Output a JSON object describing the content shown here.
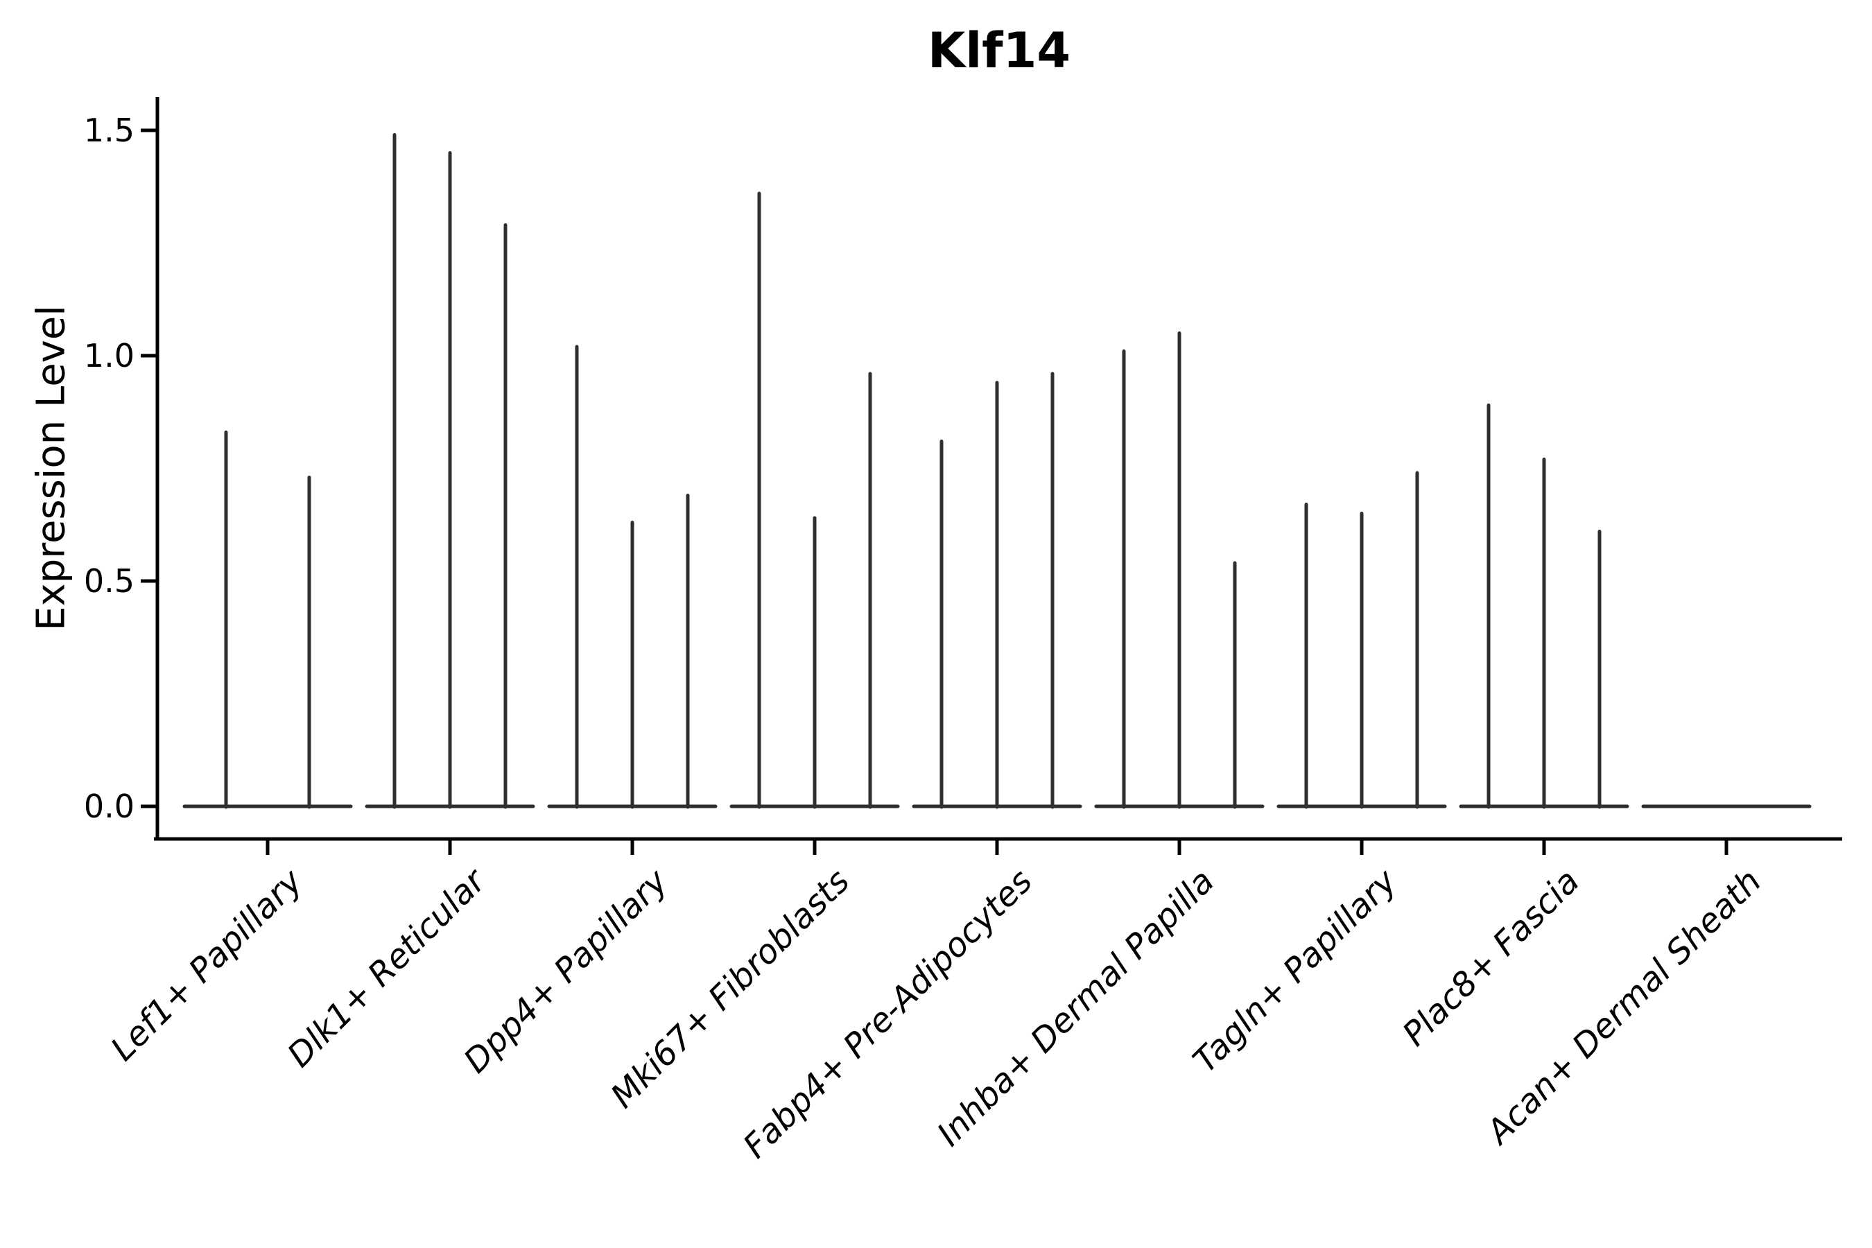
{
  "chart_data": {
    "type": "violin",
    "title": "Klf14",
    "ylabel": "Expression Level",
    "xlabel": "",
    "ylim": [
      0.0,
      1.5
    ],
    "ytick_labels": [
      "0.0",
      "0.5",
      "1.0",
      "1.5"
    ],
    "ytick_values": [
      0.0,
      0.5,
      1.0,
      1.5
    ],
    "grid": false,
    "legend": false,
    "x_tick_rotation_deg": 45,
    "categories": [
      "Lef1+ Papillary",
      "Dlk1+ Reticular",
      "Dpp4+ Papillary",
      "Mki67+ Fibroblasts",
      "Fabp4+ Pre-Adipocytes",
      "Inhba+ Dermal Papilla",
      "Tagln+ Papillary",
      "Plac8+ Fascia",
      "Acan+ Dermal Sheath"
    ],
    "groups": [
      {
        "category": "Lef1+ Papillary",
        "spikes": [
          {
            "offset": -60,
            "value": 0.83
          },
          {
            "offset": 60,
            "value": 0.73
          }
        ]
      },
      {
        "category": "Dlk1+ Reticular",
        "spikes": [
          {
            "offset": -80,
            "value": 1.49
          },
          {
            "offset": 0,
            "value": 1.45
          },
          {
            "offset": 80,
            "value": 1.29
          }
        ]
      },
      {
        "category": "Dpp4+ Papillary",
        "spikes": [
          {
            "offset": -80,
            "value": 1.02
          },
          {
            "offset": 0,
            "value": 0.63
          },
          {
            "offset": 80,
            "value": 0.69
          }
        ]
      },
      {
        "category": "Mki67+ Fibroblasts",
        "spikes": [
          {
            "offset": -80,
            "value": 1.36
          },
          {
            "offset": 0,
            "value": 0.64
          },
          {
            "offset": 80,
            "value": 0.96
          }
        ]
      },
      {
        "category": "Fabp4+ Pre-Adipocytes",
        "spikes": [
          {
            "offset": -80,
            "value": 0.81
          },
          {
            "offset": 0,
            "value": 0.94
          },
          {
            "offset": 80,
            "value": 0.96
          }
        ]
      },
      {
        "category": "Inhba+ Dermal Papilla",
        "spikes": [
          {
            "offset": -80,
            "value": 1.01
          },
          {
            "offset": 0,
            "value": 1.05
          },
          {
            "offset": 80,
            "value": 0.54
          }
        ]
      },
      {
        "category": "Tagln+ Papillary",
        "spikes": [
          {
            "offset": -80,
            "value": 0.67
          },
          {
            "offset": 0,
            "value": 0.65
          },
          {
            "offset": 80,
            "value": 0.74
          }
        ]
      },
      {
        "category": "Plac8+ Fascia",
        "spikes": [
          {
            "offset": -80,
            "value": 0.89
          },
          {
            "offset": 0,
            "value": 0.77
          },
          {
            "offset": 80,
            "value": 0.61
          }
        ]
      },
      {
        "category": "Acan+ Dermal Sheath",
        "spikes": []
      }
    ],
    "baseline_value": 0.0,
    "colors": {
      "violin": "#2e2e2e",
      "axis": "#000000",
      "text": "#000000",
      "background": "#ffffff"
    }
  }
}
